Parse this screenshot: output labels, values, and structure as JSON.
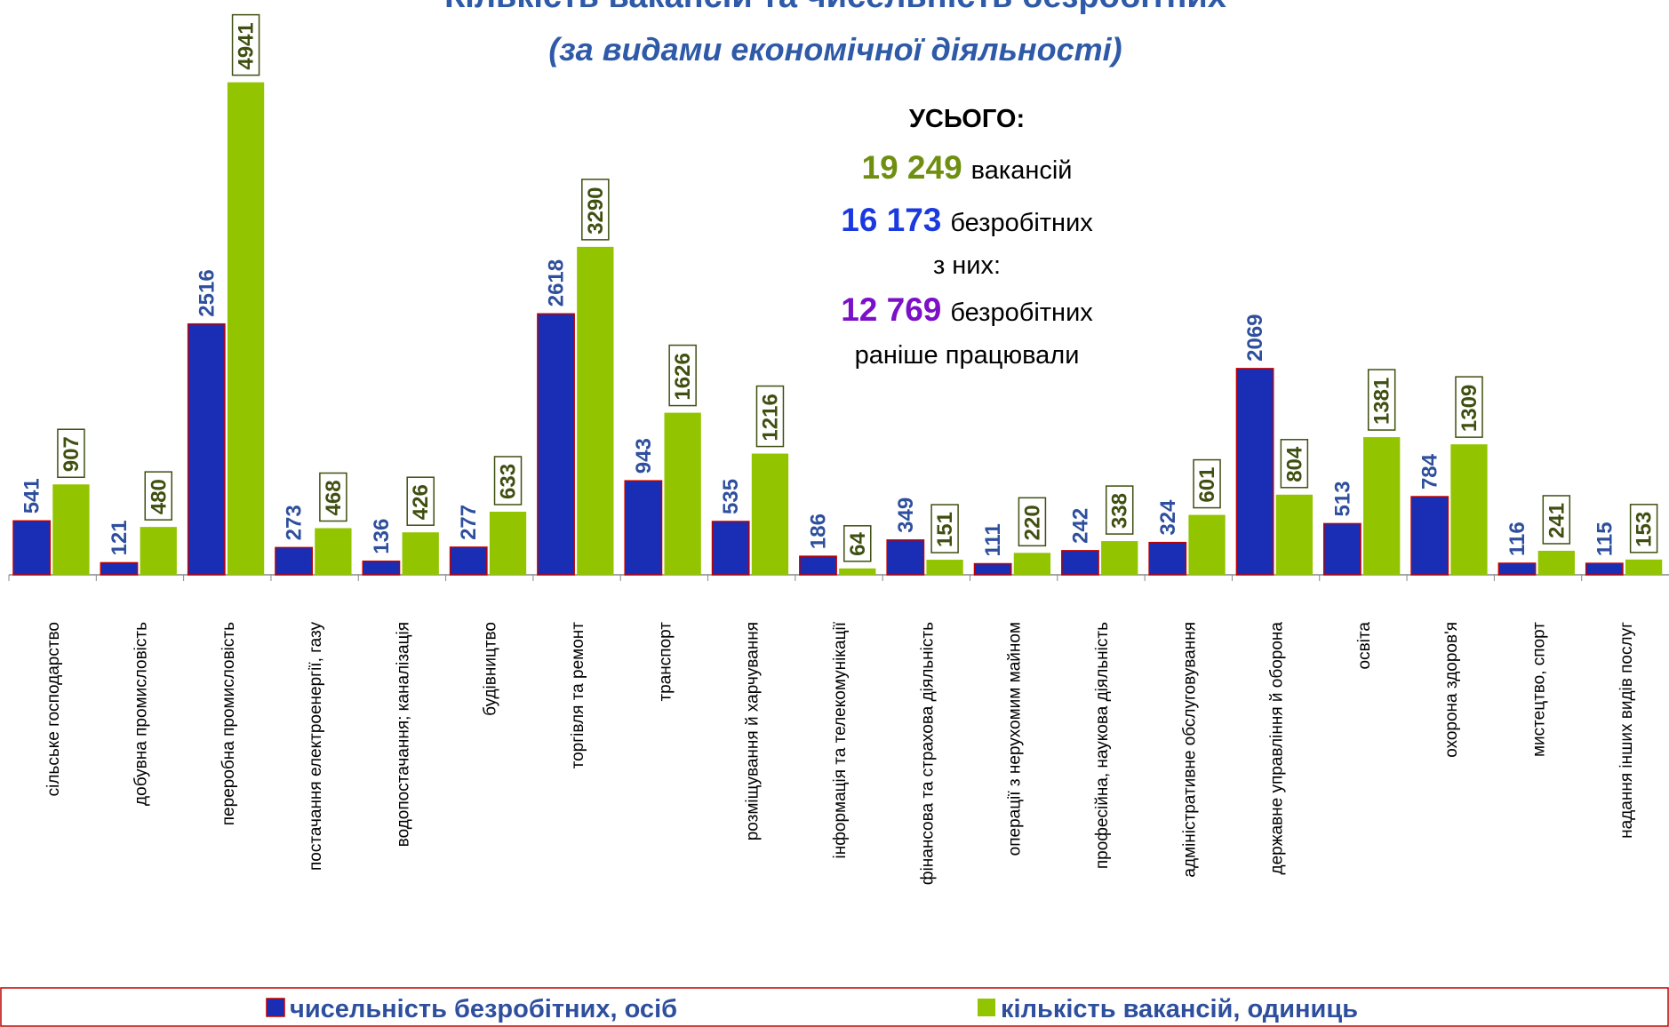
{
  "chart_data": {
    "type": "bar",
    "title": "Кількість вакансій та чисельність безробітних",
    "subtitle": "(за видами економічної діяльності)",
    "categories": [
      "сільське господарство",
      "добувна промисловість",
      "переробна промисловість",
      "постачання електроенергії, газу",
      "водопостачання; каналізація",
      "будівництво",
      "торгівля та ремонт",
      "транспорт",
      "розміщування й харчування",
      "інформація та телекомунікації",
      "фінансова та страхова діяльність",
      "операції з нерухомим майном",
      "професійна, наукова  діяльність",
      "адміністративне обслуговування",
      "державне управління й оборона",
      "освіта",
      "охорона здоров'я",
      "мистецтво, спорт",
      "надання інших видів послуг"
    ],
    "series": [
      {
        "name": "чисельність безробітних, осіб",
        "color": "#1a2db5",
        "values": [
          541,
          121,
          2516,
          273,
          136,
          277,
          2618,
          943,
          535,
          186,
          349,
          111,
          242,
          324,
          2069,
          513,
          784,
          116,
          115
        ]
      },
      {
        "name": "кількість вакансій, одиниць",
        "color": "#92c400",
        "values": [
          907,
          480,
          4941,
          468,
          426,
          633,
          3290,
          1626,
          1216,
          64,
          151,
          220,
          338,
          601,
          804,
          1381,
          1309,
          241,
          153
        ]
      }
    ],
    "ylim": [
      0,
      5000
    ],
    "summary": {
      "heading": "УСЬОГО:",
      "lines": [
        [
          "19 249",
          "вакансій"
        ],
        [
          "16 173",
          "безробітних"
        ],
        [
          "з них:"
        ],
        [
          "12 769",
          "безробітних"
        ],
        [
          "раніше працювали"
        ]
      ]
    }
  }
}
